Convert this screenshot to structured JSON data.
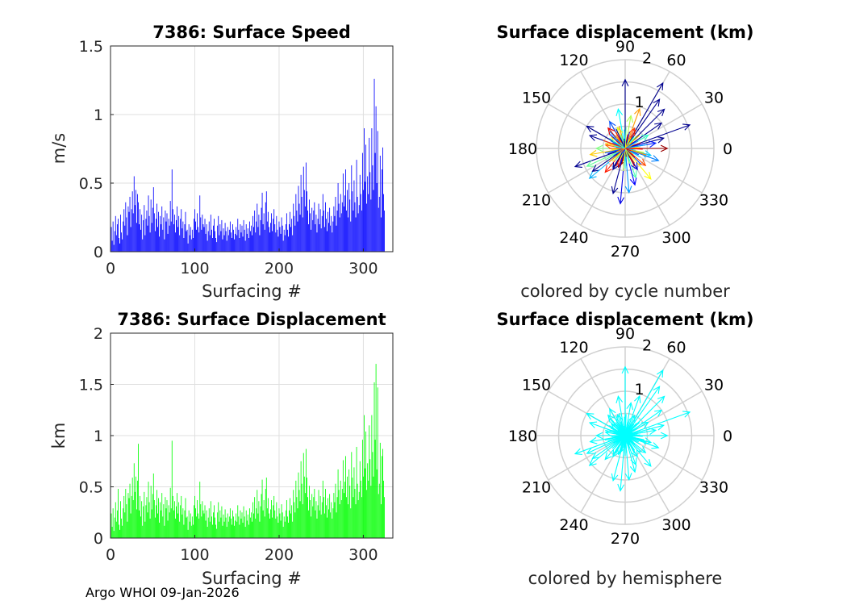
{
  "footer": "Argo WHOI 09-Jan-2026",
  "chart_data": [
    {
      "type": "bar",
      "title": "7386: Surface Speed",
      "xlabel": "Surfacing #",
      "ylabel": "m/s",
      "xlim": [
        0,
        335
      ],
      "ylim": [
        0,
        1.5
      ],
      "xticks": [
        0,
        100,
        200,
        300
      ],
      "xtick_labels": [
        "0",
        "100",
        "200",
        "300"
      ],
      "yticks": [
        0,
        0.5,
        1,
        1.5
      ],
      "ytick_labels": [
        "0",
        "0.5",
        "1",
        "1.5"
      ],
      "color": "#0000ff",
      "values": [
        0.18,
        0.08,
        0.22,
        0.05,
        0.15,
        0.26,
        0.12,
        0.2,
        0.24,
        0.1,
        0.06,
        0.27,
        0.14,
        0.09,
        0.22,
        0.31,
        0.19,
        0.36,
        0.25,
        0.12,
        0.33,
        0.29,
        0.4,
        0.18,
        0.31,
        0.44,
        0.28,
        0.55,
        0.34,
        0.45,
        0.21,
        0.42,
        0.36,
        0.2,
        0.31,
        0.16,
        0.27,
        0.09,
        0.23,
        0.34,
        0.12,
        0.24,
        0.3,
        0.19,
        0.41,
        0.26,
        0.14,
        0.38,
        0.21,
        0.32,
        0.47,
        0.28,
        0.15,
        0.24,
        0.35,
        0.18,
        0.29,
        0.11,
        0.26,
        0.2,
        0.33,
        0.16,
        0.25,
        0.09,
        0.3,
        0.22,
        0.28,
        0.13,
        0.24,
        0.19,
        0.37,
        0.22,
        0.6,
        0.31,
        0.2,
        0.27,
        0.14,
        0.23,
        0.33,
        0.18,
        0.26,
        0.12,
        0.24,
        0.31,
        0.17,
        0.22,
        0.1,
        0.2,
        0.29,
        0.15,
        0.16,
        0.06,
        0.2,
        0.12,
        0.18,
        0.09,
        0.16,
        0.1,
        0.24,
        0.31,
        0.22,
        0.16,
        0.28,
        0.18,
        0.14,
        0.41,
        0.25,
        0.16,
        0.27,
        0.2,
        0.18,
        0.24,
        0.13,
        0.2,
        0.08,
        0.15,
        0.22,
        0.12,
        0.27,
        0.16,
        0.1,
        0.19,
        0.24,
        0.15,
        0.1,
        0.07,
        0.19,
        0.26,
        0.12,
        0.2,
        0.15,
        0.23,
        0.09,
        0.17,
        0.12,
        0.21,
        0.15,
        0.08,
        0.18,
        0.12,
        0.16,
        0.22,
        0.14,
        0.1,
        0.2,
        0.16,
        0.09,
        0.13,
        0.18,
        0.12,
        0.24,
        0.16,
        0.1,
        0.2,
        0.14,
        0.19,
        0.11,
        0.23,
        0.16,
        0.08,
        0.2,
        0.13,
        0.17,
        0.1,
        0.22,
        0.15,
        0.19,
        0.12,
        0.26,
        0.18,
        0.3,
        0.14,
        0.22,
        0.35,
        0.18,
        0.27,
        0.12,
        0.23,
        0.32,
        0.43,
        0.2,
        0.28,
        0.16,
        0.36,
        0.44,
        0.22,
        0.29,
        0.18,
        0.14,
        0.21,
        0.28,
        0.15,
        0.24,
        0.31,
        0.2,
        0.14,
        0.26,
        0.16,
        0.11,
        0.22,
        0.18,
        0.13,
        0.25,
        0.19,
        0.08,
        0.16,
        0.12,
        0.2,
        0.28,
        0.16,
        0.11,
        0.2,
        0.29,
        0.18,
        0.24,
        0.12,
        0.35,
        0.26,
        0.19,
        0.42,
        0.3,
        0.22,
        0.48,
        0.35,
        0.27,
        0.56,
        0.4,
        0.25,
        0.62,
        0.45,
        0.33,
        0.65,
        0.44,
        0.3,
        0.2,
        0.38,
        0.28,
        0.16,
        0.32,
        0.23,
        0.3,
        0.36,
        0.2,
        0.27,
        0.14,
        0.24,
        0.35,
        0.2,
        0.31,
        0.17,
        0.26,
        0.42,
        0.3,
        0.18,
        0.36,
        0.24,
        0.15,
        0.29,
        0.21,
        0.32,
        0.19,
        0.26,
        0.14,
        0.22,
        0.33,
        0.26,
        0.4,
        0.19,
        0.3,
        0.5,
        0.35,
        0.25,
        0.42,
        0.28,
        0.36,
        0.57,
        0.33,
        0.41,
        0.6,
        0.3,
        0.45,
        0.25,
        0.5,
        0.38,
        0.22,
        0.63,
        0.44,
        0.3,
        0.52,
        0.36,
        0.25,
        0.67,
        0.4,
        0.28,
        0.34,
        0.56,
        0.42,
        0.3,
        0.72,
        0.45,
        0.9,
        0.51,
        0.78,
        0.35,
        0.55,
        0.42,
        0.83,
        0.58,
        0.38,
        0.9,
        0.63,
        0.45,
        1.26,
        0.72,
        1.06,
        0.5,
        0.88,
        0.32,
        0.4,
        0.7,
        0.25,
        0.6,
        0.76,
        0.42,
        0.3
      ]
    },
    {
      "type": "bar",
      "title": "7386: Surface Displacement",
      "xlabel": "Surfacing #",
      "ylabel": "km",
      "xlim": [
        0,
        335
      ],
      "ylim": [
        0,
        2
      ],
      "xticks": [
        0,
        100,
        200,
        300
      ],
      "xtick_labels": [
        "0",
        "100",
        "200",
        "300"
      ],
      "yticks": [
        0,
        0.5,
        1,
        1.5,
        2
      ],
      "ytick_labels": [
        "0",
        "0.5",
        "1",
        "1.5",
        "2"
      ],
      "color": "#00ff00",
      "values": [
        0.24,
        0.11,
        0.29,
        0.07,
        0.2,
        0.35,
        0.16,
        0.27,
        0.48,
        0.13,
        0.08,
        0.36,
        0.19,
        0.12,
        0.29,
        0.41,
        0.25,
        0.48,
        0.33,
        0.16,
        0.44,
        0.39,
        0.53,
        0.24,
        0.41,
        0.59,
        0.37,
        0.73,
        0.45,
        0.6,
        0.28,
        0.56,
        0.92,
        0.27,
        0.41,
        0.21,
        0.36,
        0.12,
        0.31,
        0.45,
        0.16,
        0.32,
        0.4,
        0.25,
        0.55,
        0.35,
        0.19,
        0.51,
        0.28,
        0.43,
        0.63,
        0.37,
        0.2,
        0.32,
        0.47,
        0.24,
        0.39,
        0.15,
        0.35,
        0.27,
        0.44,
        0.21,
        0.33,
        0.12,
        0.4,
        0.29,
        0.37,
        0.17,
        0.32,
        0.25,
        0.49,
        0.29,
        0.95,
        0.41,
        0.27,
        0.36,
        0.19,
        0.31,
        0.44,
        0.24,
        0.35,
        0.16,
        0.32,
        0.41,
        0.23,
        0.29,
        0.13,
        0.27,
        0.39,
        0.2,
        0.21,
        0.08,
        0.27,
        0.16,
        0.24,
        0.12,
        0.21,
        0.13,
        0.32,
        0.41,
        0.29,
        0.21,
        0.37,
        0.24,
        0.19,
        0.55,
        0.33,
        0.21,
        0.36,
        0.27,
        0.24,
        0.32,
        0.17,
        0.27,
        0.11,
        0.2,
        0.29,
        0.16,
        0.36,
        0.21,
        0.13,
        0.25,
        0.32,
        0.2,
        0.13,
        0.09,
        0.25,
        0.35,
        0.16,
        0.27,
        0.2,
        0.31,
        0.12,
        0.23,
        0.16,
        0.28,
        0.2,
        0.11,
        0.24,
        0.16,
        0.21,
        0.29,
        0.19,
        0.13,
        0.27,
        0.21,
        0.12,
        0.17,
        0.24,
        0.16,
        0.32,
        0.21,
        0.13,
        0.27,
        0.19,
        0.25,
        0.15,
        0.31,
        0.21,
        0.11,
        0.27,
        0.17,
        0.23,
        0.13,
        0.29,
        0.2,
        0.25,
        0.16,
        0.35,
        0.24,
        0.4,
        0.19,
        0.29,
        0.47,
        0.24,
        0.36,
        0.16,
        0.31,
        0.43,
        0.57,
        0.27,
        0.37,
        0.21,
        0.48,
        0.59,
        0.29,
        0.39,
        0.24,
        0.19,
        0.28,
        0.37,
        0.2,
        0.32,
        0.41,
        0.27,
        0.19,
        0.35,
        0.21,
        0.15,
        0.29,
        0.24,
        0.17,
        0.33,
        0.25,
        0.11,
        0.21,
        0.16,
        0.27,
        0.37,
        0.21,
        0.15,
        0.27,
        0.39,
        0.24,
        0.32,
        0.16,
        0.47,
        0.35,
        0.25,
        0.56,
        0.4,
        0.29,
        0.64,
        0.47,
        0.36,
        0.75,
        0.53,
        0.33,
        0.83,
        0.6,
        0.44,
        0.87,
        0.59,
        0.4,
        0.27,
        0.51,
        0.37,
        0.21,
        0.43,
        0.31,
        0.4,
        0.48,
        0.27,
        0.36,
        0.19,
        0.32,
        0.47,
        0.27,
        0.41,
        0.23,
        0.35,
        0.56,
        0.4,
        0.24,
        0.48,
        0.32,
        0.2,
        0.39,
        0.28,
        0.43,
        0.25,
        0.35,
        0.19,
        0.29,
        0.44,
        0.35,
        0.53,
        0.25,
        0.4,
        0.67,
        0.47,
        0.33,
        0.56,
        0.37,
        0.48,
        0.76,
        0.44,
        0.55,
        0.8,
        0.4,
        0.6,
        0.33,
        0.67,
        0.51,
        0.29,
        0.84,
        0.59,
        0.4,
        0.69,
        0.48,
        0.33,
        0.89,
        0.53,
        0.37,
        0.45,
        0.75,
        0.56,
        0.4,
        0.96,
        0.6,
        1.2,
        0.68,
        1.04,
        0.47,
        0.73,
        0.56,
        1.1,
        0.77,
        0.51,
        1.2,
        0.84,
        0.6,
        1.52,
        0.96,
        1.7,
        0.67,
        1.47,
        0.43,
        0.53,
        0.93,
        0.33,
        0.8,
        0.87,
        0.56,
        0.4
      ]
    },
    {
      "type": "polar",
      "title": "Surface displacement (km)",
      "caption": "colored by cycle number",
      "theta_labels": [
        "0",
        "30",
        "60",
        "90",
        "120",
        "150",
        "180",
        "210",
        "240",
        "270",
        "300",
        "330"
      ],
      "r_labels": [
        "1",
        "2"
      ],
      "rlim": [
        0,
        2
      ],
      "arrows_deg_km": [
        [
          90,
          1.55
        ],
        [
          60,
          1.7
        ],
        [
          55,
          1.35
        ],
        [
          45,
          1.25
        ],
        [
          20,
          1.55
        ],
        [
          35,
          1.0
        ],
        [
          15,
          0.9
        ],
        [
          150,
          1.0
        ],
        [
          160,
          0.85
        ],
        [
          200,
          1.2
        ],
        [
          215,
          0.9
        ],
        [
          255,
          1.05
        ],
        [
          265,
          1.25
        ],
        [
          275,
          1.0
        ],
        [
          290,
          0.7
        ],
        [
          310,
          0.9
        ],
        [
          320,
          0.6
        ],
        [
          0,
          0.95
        ],
        [
          10,
          0.7
        ],
        [
          345,
          0.6
        ],
        [
          180,
          0.65
        ],
        [
          190,
          0.8
        ],
        [
          230,
          0.7
        ],
        [
          240,
          0.55
        ],
        [
          120,
          0.7
        ],
        [
          100,
          0.9
        ],
        [
          80,
          0.75
        ],
        [
          70,
          0.95
        ],
        [
          130,
          0.6
        ],
        [
          300,
          0.55
        ],
        [
          340,
          0.8
        ],
        [
          30,
          0.6
        ],
        [
          110,
          0.5
        ],
        [
          170,
          0.45
        ],
        [
          250,
          0.45
        ],
        [
          285,
          0.85
        ],
        [
          220,
          1.05
        ],
        [
          205,
          0.95
        ],
        [
          140,
          0.4
        ],
        [
          65,
          0.5
        ]
      ],
      "colormap": "cycle number"
    },
    {
      "type": "polar",
      "title": "Surface displacement (km)",
      "caption": "colored by hemisphere",
      "theta_labels": [
        "0",
        "30",
        "60",
        "90",
        "120",
        "150",
        "180",
        "210",
        "240",
        "270",
        "300",
        "330"
      ],
      "r_labels": [
        "1",
        "2"
      ],
      "rlim": [
        0,
        2
      ],
      "arrows_deg_km": [
        [
          90,
          1.55
        ],
        [
          60,
          1.7
        ],
        [
          55,
          1.35
        ],
        [
          45,
          1.25
        ],
        [
          20,
          1.55
        ],
        [
          35,
          1.0
        ],
        [
          15,
          0.9
        ],
        [
          150,
          1.0
        ],
        [
          160,
          0.85
        ],
        [
          200,
          1.2
        ],
        [
          215,
          0.9
        ],
        [
          255,
          1.05
        ],
        [
          265,
          1.25
        ],
        [
          275,
          1.0
        ],
        [
          290,
          0.7
        ],
        [
          310,
          0.9
        ],
        [
          320,
          0.6
        ],
        [
          0,
          0.95
        ],
        [
          10,
          0.7
        ],
        [
          345,
          0.6
        ],
        [
          180,
          0.65
        ],
        [
          190,
          0.8
        ],
        [
          230,
          0.7
        ],
        [
          240,
          0.55
        ],
        [
          120,
          0.7
        ],
        [
          100,
          0.9
        ],
        [
          80,
          0.75
        ],
        [
          70,
          0.95
        ],
        [
          130,
          0.6
        ],
        [
          300,
          0.55
        ],
        [
          340,
          0.8
        ],
        [
          30,
          0.6
        ],
        [
          110,
          0.5
        ],
        [
          170,
          0.45
        ],
        [
          250,
          0.45
        ],
        [
          285,
          0.85
        ],
        [
          220,
          1.05
        ],
        [
          205,
          0.95
        ],
        [
          140,
          0.4
        ],
        [
          65,
          0.5
        ]
      ],
      "color": "#00ffff"
    }
  ]
}
